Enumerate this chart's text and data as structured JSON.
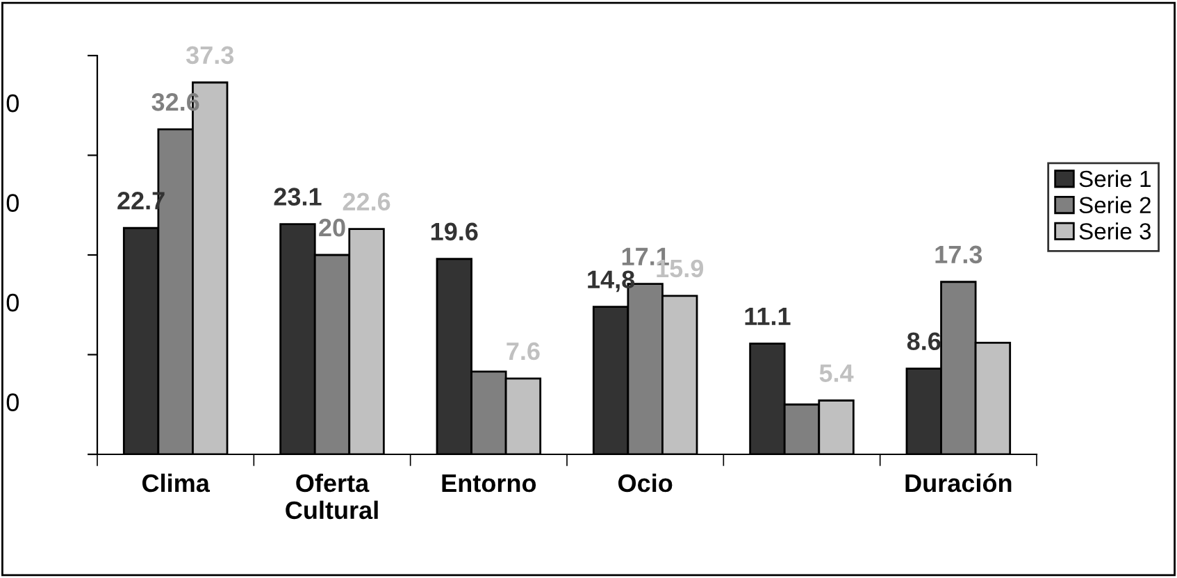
{
  "chart_data": {
    "type": "bar",
    "categories": [
      "Clima",
      "Oferta\nCultural",
      "Entorno",
      "Ocio",
      null,
      "Duración"
    ],
    "series": [
      {
        "name": "Serie 1",
        "color": "#333333",
        "values": [
          22.7,
          23.1,
          19.6,
          14.8,
          11.1,
          8.6
        ],
        "value_labels": [
          "22.7",
          "23.1",
          "19.6",
          "14,8",
          "11.1",
          "8.6"
        ]
      },
      {
        "name": "Serie 2",
        "color": "#808080",
        "values": [
          32.6,
          20,
          8.3,
          17.1,
          5.0,
          17.3
        ],
        "value_labels": [
          "32.6",
          "20",
          null,
          "17.1",
          null,
          "17.3"
        ]
      },
      {
        "name": "Serie 3",
        "color": "#c0c0c0",
        "values": [
          37.3,
          22.6,
          7.6,
          15.9,
          5.4,
          11.2
        ],
        "value_labels": [
          "37.3",
          "22.6",
          "7.6",
          "15.9",
          "5.4",
          null
        ]
      }
    ],
    "ylim": [
      0,
      40
    ],
    "yticks": [
      {
        "value": 0,
        "label": null
      },
      {
        "value": 10,
        "label": null
      },
      {
        "value": 20,
        "label": null
      },
      {
        "value": 30,
        "label": null
      },
      {
        "value": 40,
        "label": null
      }
    ],
    "annotations": [
      "0",
      "0",
      "0",
      "0"
    ],
    "grid": false,
    "legend": "right"
  }
}
